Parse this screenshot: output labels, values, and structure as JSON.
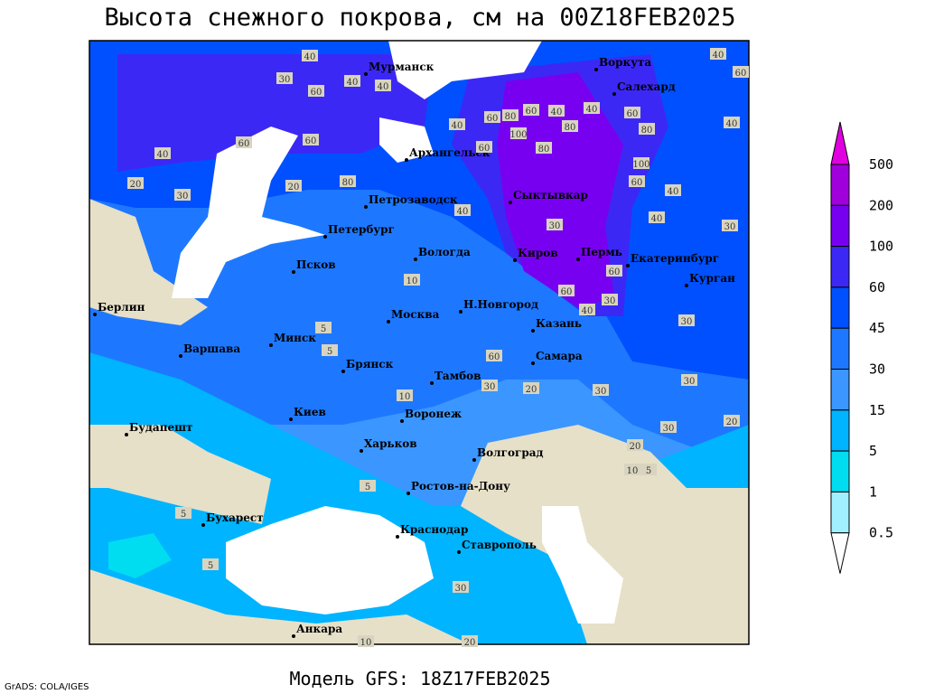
{
  "title": "Высота снежного покрова, см на 00Z18FEB2025",
  "footer": "Модель GFS: 18Z17FEB2025",
  "credit": "GrADS: COLA/IGES",
  "colorbar": {
    "levels": [
      500,
      200,
      100,
      60,
      45,
      30,
      15,
      5,
      1,
      0.5
    ],
    "colors": [
      "#e000e0",
      "#a000dc",
      "#7800f0",
      "#3c28f5",
      "#0050ff",
      "#1e78ff",
      "#3c96ff",
      "#00b4ff",
      "#00dcf0",
      "#a0f0ff",
      "#ffffff"
    ]
  },
  "cities": [
    "Мурманск",
    "Воркута",
    "Салехард",
    "Архангельск",
    "Петрозаводск",
    "Сыктывкар",
    "Петербург",
    "Вологда",
    "Киров",
    "Пермь",
    "Екатеринбург",
    "Курган",
    "Псков",
    "Берлин",
    "Н.Новгород",
    "Минск",
    "Москва",
    "Казань",
    "Варшава",
    "Брянск",
    "Самара",
    "Тамбов",
    "Киев",
    "Воронеж",
    "Будапешт",
    "Харьков",
    "Волгоград",
    "Ростов-на-Дону",
    "Бухарест",
    "Краснодар",
    "Ставрополь",
    "Анкара"
  ],
  "contour_labels": [
    40,
    30,
    60,
    40,
    40,
    60,
    80,
    60,
    40,
    100,
    80,
    60,
    40,
    80,
    40,
    60,
    80,
    100,
    60,
    40,
    40,
    40,
    40,
    60,
    30,
    40,
    20,
    30,
    20,
    80,
    60,
    60,
    40,
    30,
    60,
    40,
    60,
    30,
    30,
    10,
    5,
    5,
    60,
    30,
    20,
    30,
    30,
    30,
    20,
    20,
    10,
    5,
    5,
    5,
    5,
    10,
    10,
    20,
    30
  ]
}
